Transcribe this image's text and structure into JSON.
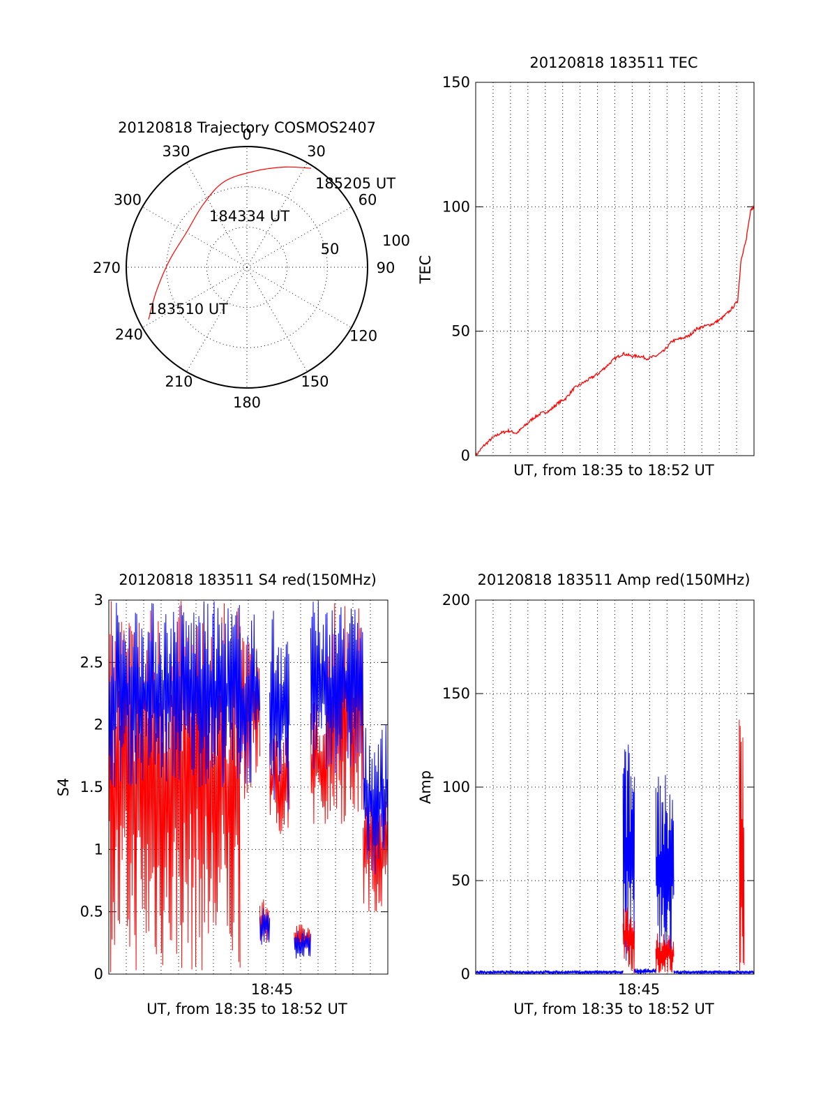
{
  "colors": {
    "red": "#ff0000",
    "blue": "#0000ff"
  },
  "chart_data": [
    {
      "type": "polar",
      "title": "20120818 Trajectory COSMOS2407",
      "angle_labels": [
        "0",
        "30",
        "60",
        "90",
        "120",
        "150",
        "180",
        "210",
        "240",
        "270",
        "300",
        "330"
      ],
      "radial_labels": [
        "50",
        "100"
      ],
      "point_labels": [
        "185205 UT",
        "184334 UT",
        "183510 UT"
      ],
      "trajectory": [
        {
          "azimuth": 242,
          "zenith": 83
        },
        {
          "azimuth": 255,
          "zenith": 70
        },
        {
          "azimuth": 275,
          "zenith": 58
        },
        {
          "azimuth": 300,
          "zenith": 52
        },
        {
          "azimuth": 325,
          "zenith": 57
        },
        {
          "azimuth": 345,
          "zenith": 66
        },
        {
          "azimuth": 5,
          "zenith": 72
        },
        {
          "azimuth": 21,
          "zenith": 80
        },
        {
          "azimuth": 33,
          "zenith": 88
        }
      ]
    },
    {
      "type": "line",
      "title": "20120818 183511 TEC",
      "xlabel": "UT, from 18:35 to 18:52 UT",
      "ylabel": "TEC",
      "yticks": [
        "0",
        "50",
        "100",
        "150"
      ],
      "ylim": [
        0,
        150
      ],
      "xlim_minutes": [
        0,
        17
      ],
      "series": [
        {
          "color": "red",
          "x": [
            0,
            0.5,
            1,
            1.5,
            2,
            2.5,
            3,
            3.5,
            4,
            4.5,
            5,
            5.5,
            6,
            6.5,
            7,
            7.5,
            8,
            8.5,
            9,
            9.5,
            10,
            10.5,
            11,
            11.5,
            12,
            12.5,
            13,
            13.5,
            14,
            14.5,
            15,
            15.5,
            16,
            16.2,
            16.5,
            16.8,
            17
          ],
          "y": [
            0,
            4,
            7,
            9,
            10,
            9,
            12,
            15,
            17,
            18,
            21,
            23,
            27,
            29,
            31,
            33,
            36,
            39,
            41,
            40,
            40,
            39,
            40,
            42,
            46,
            47,
            48,
            51,
            52,
            53,
            55,
            58,
            62,
            78,
            86,
            99,
            100
          ]
        }
      ]
    },
    {
      "type": "line",
      "title": "20120818 183511 S4 red(150MHz)",
      "xlabel": "UT, from 18:35 to 18:52 UT",
      "ylabel": "S4",
      "yticks": [
        "0",
        "0.5",
        "1",
        "1.5",
        "2",
        "2.5",
        "3"
      ],
      "xticks": [
        "18:45"
      ],
      "ylim": [
        0,
        3
      ],
      "xlim_minutes": [
        0,
        17
      ],
      "series": [
        {
          "color": "red",
          "segments": [
            {
              "from": 0,
              "to": 8,
              "low": 0,
              "high": 3
            },
            {
              "from": 8,
              "to": 9.2,
              "low": 1.4,
              "high": 2.8
            },
            {
              "from": 9.2,
              "to": 9.8,
              "low": 0.25,
              "high": 0.6
            },
            {
              "from": 9.8,
              "to": 11,
              "low": 1.1,
              "high": 2.0
            },
            {
              "from": 11.3,
              "to": 12.3,
              "low": 0.15,
              "high": 0.4
            },
            {
              "from": 12.3,
              "to": 13.3,
              "low": 1.2,
              "high": 2.2
            },
            {
              "from": 13.3,
              "to": 15.5,
              "low": 1.2,
              "high": 3
            },
            {
              "from": 15.5,
              "to": 17,
              "low": 0.5,
              "high": 1.5
            }
          ]
        },
        {
          "color": "blue",
          "segments": [
            {
              "from": 0,
              "to": 8,
              "low": 1.5,
              "high": 3
            },
            {
              "from": 8,
              "to": 9.2,
              "low": 1.5,
              "high": 2.9
            },
            {
              "from": 9.2,
              "to": 9.8,
              "low": 0.2,
              "high": 0.55
            },
            {
              "from": 9.8,
              "to": 11,
              "low": 1.3,
              "high": 3
            },
            {
              "from": 11.3,
              "to": 12.3,
              "low": 0.12,
              "high": 0.35
            },
            {
              "from": 12.3,
              "to": 13.3,
              "low": 1.6,
              "high": 3
            },
            {
              "from": 13.3,
              "to": 15.5,
              "low": 1.6,
              "high": 3
            },
            {
              "from": 15.5,
              "to": 17,
              "low": 0.8,
              "high": 2.0
            }
          ]
        }
      ]
    },
    {
      "type": "line",
      "title": "20120818 183511 Amp red(150MHz)",
      "xlabel": "UT, from 18:35 to 18:52 UT",
      "ylabel": "Amp",
      "yticks": [
        "0",
        "50",
        "100",
        "150",
        "200"
      ],
      "xticks": [
        "18:45"
      ],
      "ylim": [
        0,
        200
      ],
      "xlim_minutes": [
        0,
        17
      ],
      "series": [
        {
          "color": "blue",
          "segments": [
            {
              "from": 0,
              "to": 9.0,
              "low": 0,
              "high": 2
            },
            {
              "from": 9.0,
              "to": 9.7,
              "low": 0,
              "high": 125
            },
            {
              "from": 9.7,
              "to": 11.0,
              "low": 0,
              "high": 3
            },
            {
              "from": 11.0,
              "to": 12.1,
              "low": 5,
              "high": 108
            },
            {
              "from": 12.1,
              "to": 17,
              "low": 0,
              "high": 2
            }
          ]
        },
        {
          "color": "red",
          "segments": [
            {
              "from": 9.0,
              "to": 9.7,
              "low": 0,
              "high": 40
            },
            {
              "from": 11.0,
              "to": 12.1,
              "low": 0,
              "high": 22
            },
            {
              "from": 16.1,
              "to": 16.4,
              "low": 0,
              "high": 138
            }
          ]
        }
      ]
    }
  ]
}
